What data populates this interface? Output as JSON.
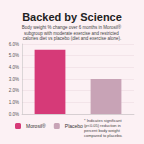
{
  "chart_data": {
    "type": "bar",
    "title": "Backed by Science",
    "subtitle": "Body weight % change over 6 months in Morosil® subgroup with moderate exercise and restricted calories diet vs placebo (diet and exercise alone).",
    "categories": [
      "Morosil®",
      "Placebo"
    ],
    "values": [
      5.5,
      3.0
    ],
    "colors": [
      "#d63a78",
      "#c8a3b6"
    ],
    "ylim": [
      0,
      6
    ],
    "yticks": [
      {
        "value": 0,
        "label": "0.0%"
      },
      {
        "value": 1,
        "label": "1.0%"
      },
      {
        "value": 2,
        "label": "2.0%"
      },
      {
        "value": 3,
        "label": "3.0%"
      },
      {
        "value": 4,
        "label": "4.0%"
      },
      {
        "value": 5,
        "label": "5.0%"
      },
      {
        "value": 6,
        "label": "6.0%"
      }
    ],
    "grid": true,
    "legend": "bottom",
    "tick_labels": "y",
    "annotation": "* Indicates significant (p<0.05) reduction in percent body weight compared to placebo."
  }
}
